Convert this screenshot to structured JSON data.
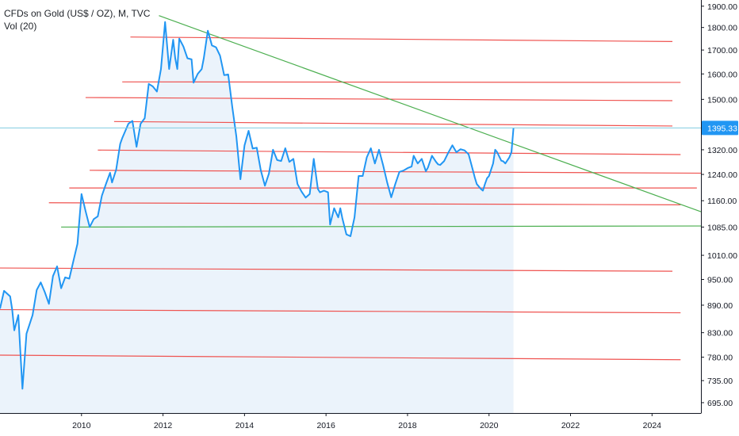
{
  "header": {
    "symbol_title": "CFDs on Gold (US$ / OZ), M, TVC",
    "indicator_label": "Vol (20)"
  },
  "price_tag": "1395.33",
  "colors": {
    "price_line": "#2196f3",
    "area_fill": "#e3eefa",
    "resistance_lines": "#ef5350",
    "trend_lines": "#4caf50",
    "current_price_line": "#80cbe0",
    "price_tag_bg": "#2196f3",
    "axis": "#131722"
  },
  "chart_data": {
    "type": "line",
    "title": "CFDs on Gold (US$ / OZ), M, TVC",
    "xlabel": "",
    "ylabel": "",
    "x_ticks": [
      "2010",
      "2012",
      "2014",
      "2016",
      "2018",
      "2020",
      "2022",
      "2024"
    ],
    "y_ticks": [
      "1900.00",
      "1800.00",
      "1700.00",
      "1600.00",
      "1500.00",
      "1395.33",
      "1320.00",
      "1240.00",
      "1160.00",
      "1085.00",
      "1010.00",
      "950.00",
      "890.00",
      "830.00",
      "780.00",
      "735.00",
      "695.00"
    ],
    "y_scale": "log",
    "xlim": [
      2008.0,
      2025.2
    ],
    "ylim": [
      677,
      1930
    ],
    "current_price": 1395.33,
    "grid": false,
    "series": [
      {
        "values": [
          [
            2008.0,
            882
          ],
          [
            2008.1,
            923
          ],
          [
            2008.25,
            910
          ],
          [
            2008.3,
            880
          ],
          [
            2008.35,
            835
          ],
          [
            2008.45,
            868
          ],
          [
            2008.55,
            720
          ],
          [
            2008.65,
            828
          ],
          [
            2008.8,
            868
          ],
          [
            2008.9,
            925
          ],
          [
            2009.0,
            943
          ],
          [
            2009.1,
            920
          ],
          [
            2009.2,
            893
          ],
          [
            2009.3,
            958
          ],
          [
            2009.4,
            982
          ],
          [
            2009.5,
            929
          ],
          [
            2009.6,
            955
          ],
          [
            2009.7,
            952
          ],
          [
            2009.8,
            995
          ],
          [
            2009.9,
            1040
          ],
          [
            2010.0,
            1180
          ],
          [
            2010.1,
            1130
          ],
          [
            2010.2,
            1085
          ],
          [
            2010.3,
            1107
          ],
          [
            2010.4,
            1115
          ],
          [
            2010.5,
            1175
          ],
          [
            2010.6,
            1210
          ],
          [
            2010.7,
            1245
          ],
          [
            2010.75,
            1215
          ],
          [
            2010.85,
            1255
          ],
          [
            2010.95,
            1340
          ],
          [
            2011.0,
            1360
          ],
          [
            2011.15,
            1410
          ],
          [
            2011.25,
            1420
          ],
          [
            2011.35,
            1330
          ],
          [
            2011.45,
            1410
          ],
          [
            2011.55,
            1430
          ],
          [
            2011.65,
            1560
          ],
          [
            2011.75,
            1550
          ],
          [
            2011.85,
            1530
          ],
          [
            2011.95,
            1620
          ],
          [
            2012.05,
            1825
          ],
          [
            2012.15,
            1620
          ],
          [
            2012.25,
            1745
          ],
          [
            2012.3,
            1665
          ],
          [
            2012.35,
            1620
          ],
          [
            2012.4,
            1750
          ],
          [
            2012.5,
            1715
          ],
          [
            2012.6,
            1665
          ],
          [
            2012.7,
            1660
          ],
          [
            2012.75,
            1565
          ],
          [
            2012.85,
            1600
          ],
          [
            2012.95,
            1620
          ],
          [
            2013.0,
            1665
          ],
          [
            2013.1,
            1785
          ],
          [
            2013.2,
            1720
          ],
          [
            2013.3,
            1712
          ],
          [
            2013.4,
            1676
          ],
          [
            2013.5,
            1595
          ],
          [
            2013.6,
            1598
          ],
          [
            2013.7,
            1470
          ],
          [
            2013.8,
            1365
          ],
          [
            2013.9,
            1225
          ],
          [
            2014.0,
            1335
          ],
          [
            2014.1,
            1385
          ],
          [
            2014.2,
            1324
          ],
          [
            2014.3,
            1327
          ],
          [
            2014.4,
            1253
          ],
          [
            2014.5,
            1205
          ],
          [
            2014.6,
            1243
          ],
          [
            2014.7,
            1320
          ],
          [
            2014.8,
            1286
          ],
          [
            2014.9,
            1283
          ],
          [
            2015.0,
            1325
          ],
          [
            2015.1,
            1280
          ],
          [
            2015.2,
            1290
          ],
          [
            2015.3,
            1210
          ],
          [
            2015.4,
            1187
          ],
          [
            2015.5,
            1169
          ],
          [
            2015.6,
            1180
          ],
          [
            2015.7,
            1290
          ],
          [
            2015.8,
            1195
          ],
          [
            2015.85,
            1185
          ],
          [
            2015.95,
            1190
          ],
          [
            2016.05,
            1185
          ],
          [
            2016.1,
            1092
          ],
          [
            2016.2,
            1138
          ],
          [
            2016.3,
            1112
          ],
          [
            2016.35,
            1138
          ],
          [
            2016.4,
            1110
          ],
          [
            2016.5,
            1065
          ],
          [
            2016.6,
            1060
          ],
          [
            2016.7,
            1112
          ],
          [
            2016.8,
            1235
          ],
          [
            2016.9,
            1235
          ],
          [
            2017.0,
            1295
          ],
          [
            2017.1,
            1325
          ],
          [
            2017.2,
            1275
          ],
          [
            2017.3,
            1320
          ],
          [
            2017.4,
            1270
          ],
          [
            2017.5,
            1215
          ],
          [
            2017.6,
            1170
          ],
          [
            2017.7,
            1210
          ],
          [
            2017.8,
            1248
          ],
          [
            2017.9,
            1252
          ],
          [
            2018.0,
            1260
          ],
          [
            2018.1,
            1265
          ],
          [
            2018.15,
            1300
          ],
          [
            2018.25,
            1275
          ],
          [
            2018.35,
            1290
          ],
          [
            2018.45,
            1250
          ],
          [
            2018.5,
            1262
          ],
          [
            2018.6,
            1300
          ],
          [
            2018.7,
            1280
          ],
          [
            2018.75,
            1272
          ],
          [
            2018.8,
            1270
          ],
          [
            2018.9,
            1283
          ],
          [
            2019.0,
            1310
          ],
          [
            2019.1,
            1335
          ],
          [
            2019.2,
            1312
          ],
          [
            2019.3,
            1322
          ],
          [
            2019.4,
            1318
          ],
          [
            2019.5,
            1305
          ],
          [
            2019.6,
            1255
          ],
          [
            2019.65,
            1230
          ],
          [
            2019.7,
            1210
          ],
          [
            2019.8,
            1195
          ],
          [
            2019.85,
            1190
          ],
          [
            2019.9,
            1210
          ],
          [
            2019.95,
            1228
          ],
          [
            2020.0,
            1235
          ],
          [
            2020.1,
            1275
          ],
          [
            2020.15,
            1320
          ],
          [
            2020.2,
            1312
          ],
          [
            2020.3,
            1284
          ],
          [
            2020.35,
            1282
          ],
          [
            2020.4,
            1275
          ],
          [
            2020.5,
            1295
          ],
          [
            2020.55,
            1312
          ],
          [
            2020.6,
            1395
          ]
        ]
      }
    ],
    "horizontal_lines": [
      {
        "x": [
          2011.2,
          2024.5
        ],
        "y": [
          1757,
          1737
        ]
      },
      {
        "x": [
          2011.0,
          2024.7
        ],
        "y": [
          1568,
          1566
        ]
      },
      {
        "x": [
          2010.1,
          2024.5
        ],
        "y": [
          1507,
          1495
        ]
      },
      {
        "x": [
          2010.8,
          2024.5
        ],
        "y": [
          1418,
          1402
        ]
      },
      {
        "x": [
          2010.4,
          2024.7
        ],
        "y": [
          1319,
          1304
        ]
      },
      {
        "x": [
          2010.2,
          2025.2
        ],
        "y": [
          1253,
          1244
        ]
      },
      {
        "x": [
          2009.7,
          2025.1
        ],
        "y": [
          1198,
          1198
        ]
      },
      {
        "x": [
          2009.2,
          2024.7
        ],
        "y": [
          1154,
          1148
        ]
      },
      {
        "x": [
          2008.0,
          2024.5
        ],
        "y": [
          978,
          970
        ]
      },
      {
        "x": [
          2008.0,
          2024.7
        ],
        "y": [
          880,
          873
        ]
      },
      {
        "x": [
          2008.0,
          2024.7
        ],
        "y": [
          784,
          775
        ]
      }
    ],
    "trend_lines": [
      {
        "x": [
          2011.9,
          2025.2
        ],
        "y": [
          1855,
          1128
        ]
      },
      {
        "x": [
          2009.5,
          2025.2
        ],
        "y": [
          1085,
          1088
        ]
      }
    ]
  }
}
